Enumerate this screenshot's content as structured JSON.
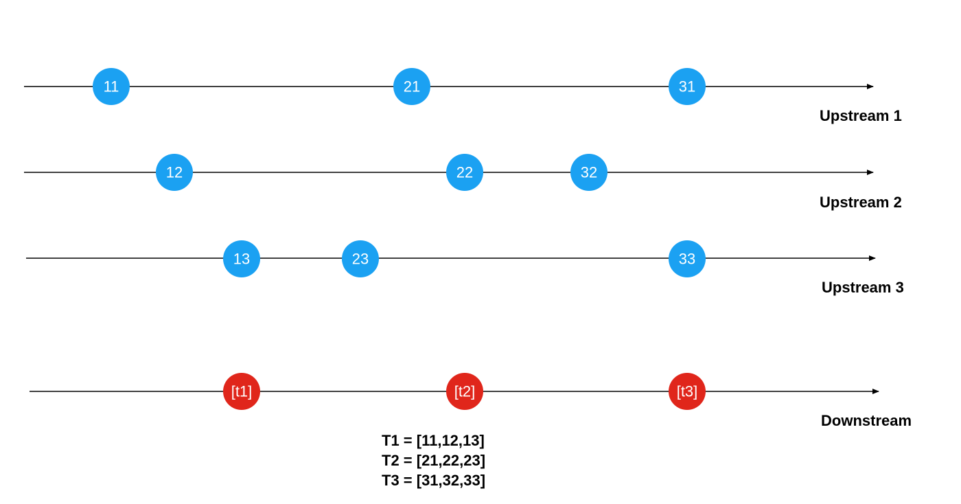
{
  "colors": {
    "upstream_marble": "#1ba1f2",
    "downstream_marble": "#e0261b",
    "marble_text": "#ffffff",
    "line": "#000000"
  },
  "streams": [
    {
      "kind": "upstream",
      "label": "Upstream 1",
      "marbles": [
        "11",
        "21",
        "31"
      ]
    },
    {
      "kind": "upstream",
      "label": "Upstream 2",
      "marbles": [
        "12",
        "22",
        "32"
      ]
    },
    {
      "kind": "upstream",
      "label": "Upstream 3",
      "marbles": [
        "13",
        "23",
        "33"
      ]
    },
    {
      "kind": "downstream",
      "label": "Downstream",
      "marbles": [
        "[t1]",
        "[t2]",
        "[t3]"
      ]
    }
  ],
  "legend": [
    "T1 = [11,12,13]",
    "T2 = [21,22,23]",
    "T3 = [31,32,33]"
  ]
}
